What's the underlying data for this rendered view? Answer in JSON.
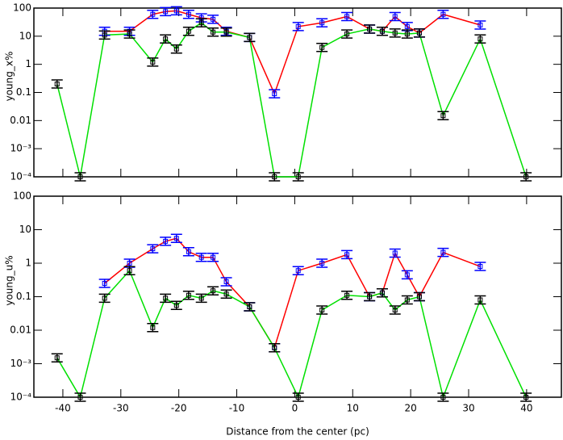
{
  "chart_data": [
    {
      "type": "line",
      "ylabel": "young_x%",
      "log_scale": true,
      "xlim": [
        -45,
        46
      ],
      "ylim": [
        0.0001,
        100
      ],
      "yticks": [
        100,
        10,
        1,
        0.1,
        0.01,
        {
          "value": 0.001,
          "label": "10⁻³"
        },
        {
          "value": 0.0001,
          "label": "10⁻⁴"
        }
      ],
      "x": [
        -41.0,
        -37.0,
        -32.8,
        -28.5,
        -24.5,
        -22.3,
        -20.4,
        -18.3,
        -16.1,
        -14.1,
        -11.8,
        -7.8,
        -3.5,
        0.6,
        4.7,
        9.0,
        12.9,
        15.1,
        17.3,
        19.4,
        21.5,
        25.6,
        32.0,
        39.9
      ],
      "series": [
        {
          "color": "#ff0000",
          "marker_color": "#0000ff",
          "values": [
            null,
            null,
            15,
            15,
            60,
            75,
            80,
            60,
            45,
            40,
            15,
            9,
            0.09,
            22,
            30,
            50,
            18,
            15,
            50,
            22,
            13,
            60,
            25,
            null
          ]
        },
        {
          "color": "#00e000",
          "marker_color": "#000000",
          "values": [
            0.2,
            0.0001,
            11,
            12,
            1.2,
            8,
            3.5,
            15,
            30,
            14,
            14,
            9,
            0.0001,
            0.0001,
            4,
            12,
            18,
            15,
            13,
            12,
            13,
            0.015,
            8,
            0.0001
          ]
        }
      ]
    },
    {
      "type": "line",
      "ylabel": "young_u%",
      "xlabel": "Distance from the center (pc)",
      "log_scale": true,
      "xlim": [
        -45,
        46
      ],
      "ylim": [
        0.0001,
        100
      ],
      "xticks": [
        -40,
        -30,
        -20,
        -10,
        0,
        10,
        20,
        30,
        40
      ],
      "yticks": [
        100,
        10,
        1,
        0.1,
        0.01,
        {
          "value": 0.001,
          "label": "10⁻³"
        },
        {
          "value": 0.0001,
          "label": "10⁻⁴"
        }
      ],
      "x": [
        -41.0,
        -37.0,
        -32.8,
        -28.5,
        -24.5,
        -22.3,
        -20.4,
        -18.3,
        -16.1,
        -14.1,
        -11.8,
        -7.8,
        -3.5,
        0.6,
        4.7,
        9.0,
        12.9,
        15.1,
        17.3,
        19.4,
        21.5,
        25.6,
        32.0,
        39.9
      ],
      "series": [
        {
          "color": "#ff0000",
          "marker_color": "#0000ff",
          "values": [
            null,
            null,
            0.25,
            1.0,
            2.7,
            4.5,
            5.5,
            2.2,
            1.5,
            1.5,
            0.28,
            0.05,
            0.003,
            0.6,
            1.0,
            1.8,
            0.1,
            0.13,
            2.0,
            0.45,
            0.1,
            2.1,
            0.8,
            null
          ]
        },
        {
          "color": "#00e000",
          "marker_color": "#000000",
          "values": [
            0.0015,
            0.0001,
            0.09,
            0.6,
            0.012,
            0.09,
            0.055,
            0.11,
            0.09,
            0.15,
            0.12,
            0.05,
            0.003,
            0.0001,
            0.04,
            0.11,
            0.1,
            0.13,
            0.04,
            0.08,
            0.1,
            0.0001,
            0.08,
            0.0001
          ]
        }
      ]
    }
  ]
}
